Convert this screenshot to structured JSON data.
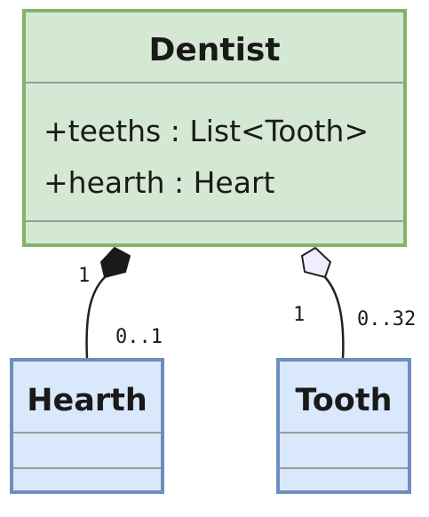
{
  "classes": {
    "dentist": {
      "name": "Dentist",
      "attributes": [
        "+teeths : List<Tooth>",
        "+hearth : Heart"
      ]
    },
    "hearth": {
      "name": "Hearth"
    },
    "tooth": {
      "name": "Tooth"
    }
  },
  "relations": {
    "composition": {
      "from": "Dentist",
      "to": "Hearth",
      "source_multiplicity": "1",
      "target_multiplicity": "0..1"
    },
    "aggregation": {
      "from": "Dentist",
      "to": "Tooth",
      "source_multiplicity": "1",
      "target_multiplicity": "0..32"
    }
  },
  "colors": {
    "dentist_fill": "#d5e8d4",
    "dentist_border": "#82b366",
    "child_fill": "#dae8fc",
    "child_border": "#6c8ebf",
    "composition_diamond": "#1a1a1a",
    "aggregation_diamond": "#eeeeff"
  }
}
